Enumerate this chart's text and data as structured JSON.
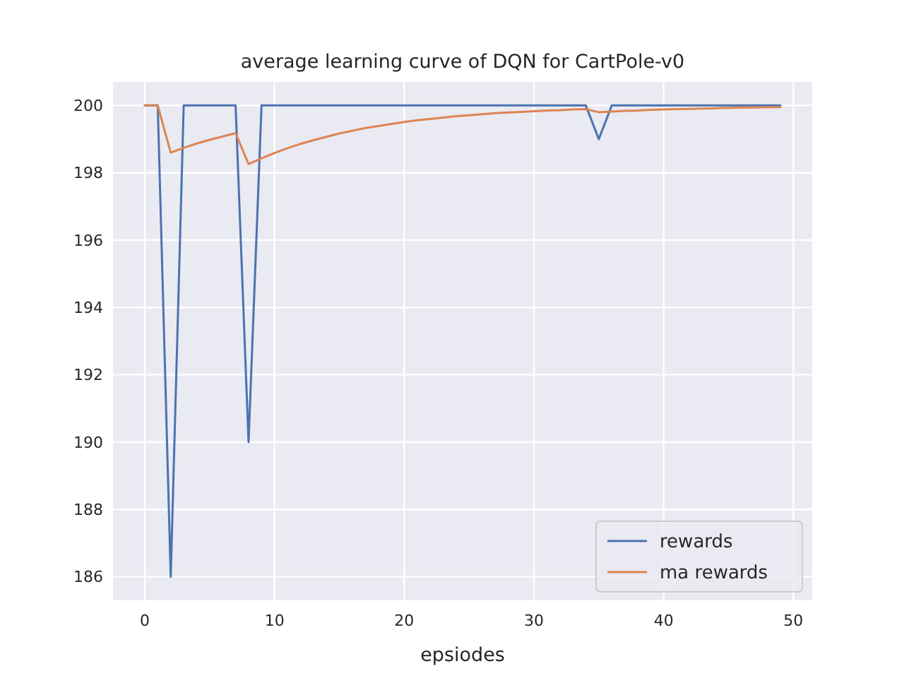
{
  "chart_data": {
    "type": "line",
    "title": "average learning curve of DQN for CartPole-v0",
    "xlabel": "epsiodes",
    "x": [
      0,
      1,
      2,
      3,
      4,
      5,
      6,
      7,
      8,
      9,
      10,
      11,
      12,
      13,
      14,
      15,
      16,
      17,
      18,
      19,
      20,
      21,
      22,
      23,
      24,
      25,
      26,
      27,
      28,
      29,
      30,
      31,
      32,
      33,
      34,
      35,
      36,
      37,
      38,
      39,
      40,
      41,
      42,
      43,
      44,
      45,
      46,
      47,
      48,
      49
    ],
    "series": [
      {
        "name": "rewards",
        "color": "#4c72b0",
        "values": [
          200,
          200,
          186,
          200,
          200,
          200,
          200,
          200,
          190,
          200,
          200,
          200,
          200,
          200,
          200,
          200,
          200,
          200,
          200,
          200,
          200,
          200,
          200,
          200,
          200,
          200,
          200,
          200,
          200,
          200,
          200,
          200,
          200,
          200,
          200,
          199,
          200,
          200,
          200,
          200,
          200,
          200,
          200,
          200,
          200,
          200,
          200,
          200,
          200,
          200
        ]
      },
      {
        "name": "ma rewards",
        "color": "#dd8452",
        "values": [
          200,
          200,
          198.6,
          198.74,
          198.87,
          198.98,
          199.08,
          199.18,
          198.26,
          198.43,
          198.59,
          198.73,
          198.86,
          198.97,
          199.07,
          199.17,
          199.25,
          199.33,
          199.39,
          199.45,
          199.51,
          199.56,
          199.6,
          199.64,
          199.68,
          199.71,
          199.74,
          199.77,
          199.79,
          199.81,
          199.83,
          199.85,
          199.86,
          199.88,
          199.89,
          199.8,
          199.82,
          199.84,
          199.85,
          199.87,
          199.88,
          199.89,
          199.9,
          199.91,
          199.92,
          199.93,
          199.94,
          199.94,
          199.95,
          199.95
        ]
      }
    ],
    "xlim": [
      -2.45,
      51.45
    ],
    "xticks": [
      0,
      10,
      20,
      30,
      40,
      50
    ],
    "ylim": [
      185.3,
      200.7
    ],
    "yticks": [
      186,
      188,
      190,
      192,
      194,
      196,
      198,
      200
    ],
    "grid": true,
    "legend": "bottom right",
    "line_style": "solid",
    "marker": "none"
  }
}
